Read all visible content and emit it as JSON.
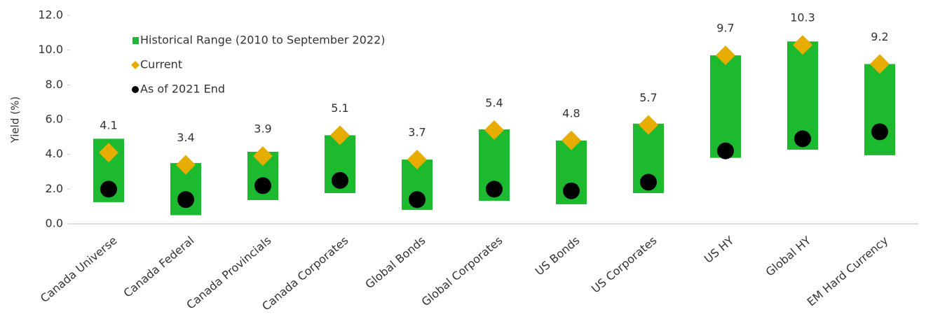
{
  "chart_data": {
    "type": "floating_bar",
    "y_label": "Yield (%)",
    "categories": [
      "Canada Universe",
      "Canada Federal",
      "Canada Provincials",
      "Canada Corporates",
      "Global Bonds",
      "Global Corporates",
      "US Bonds",
      "US Corporates",
      "US HY",
      "Global HY",
      "EM Hard Currency"
    ],
    "series": [
      {
        "name": "Historical Range (2010 to September 2022)",
        "color": "#1db92f",
        "marker": "bar",
        "low": [
          1.25,
          0.5,
          1.37,
          1.77,
          0.8,
          1.33,
          1.13,
          1.77,
          3.8,
          4.27,
          3.95
        ],
        "high": [
          4.9,
          3.5,
          4.15,
          5.1,
          3.7,
          5.44,
          4.8,
          5.77,
          9.7,
          10.5,
          9.2
        ]
      },
      {
        "name": "Current",
        "color": "#e6ac00",
        "marker": "diamond",
        "values": [
          4.1,
          3.4,
          3.9,
          5.1,
          3.7,
          5.4,
          4.8,
          5.7,
          9.7,
          10.3,
          9.2
        ]
      },
      {
        "name": "As of 2021 End",
        "color": "#000000",
        "marker": "circle",
        "values": [
          2.0,
          1.4,
          2.2,
          2.5,
          1.4,
          2.0,
          1.9,
          2.4,
          4.2,
          4.9,
          5.3
        ]
      }
    ],
    "ylim": [
      0,
      12
    ],
    "yticks": [
      {
        "value": 0,
        "label": "0.0"
      },
      {
        "value": 2,
        "label": "2.0"
      },
      {
        "value": 4,
        "label": "4.0"
      },
      {
        "value": 6,
        "label": "6.0"
      },
      {
        "value": 8,
        "label": "8.0"
      },
      {
        "value": 10,
        "label": "10.0"
      },
      {
        "value": 12,
        "label": "12.0"
      }
    ],
    "grid": false
  }
}
